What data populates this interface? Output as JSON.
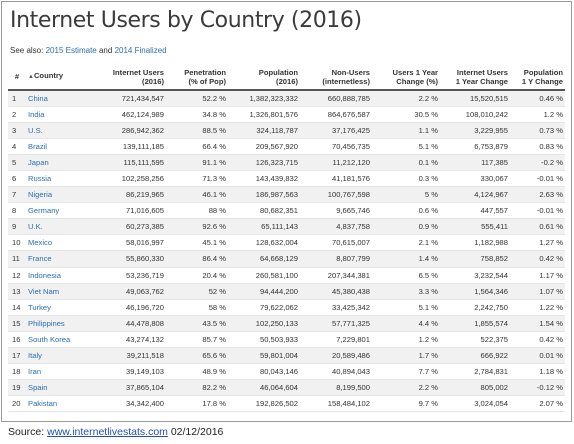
{
  "title": "Internet Users by Country (2016)",
  "see_also": {
    "prefix": "See also:",
    "link1": "2015 Estimate",
    "middle": "and",
    "link2": "2014 Finalized"
  },
  "table": {
    "headers": [
      "#",
      "Country",
      "Internet Users\n(2016)",
      "Penetration\n(% of Pop)",
      "Population\n(2016)",
      "Non-Users\n(internetless)",
      "Users 1 Year\nChange (%)",
      "Internet Users\n1 Year Change",
      "Population\n1 Y Change"
    ],
    "rows": [
      [
        "1",
        "China",
        "721,434,547",
        "52.2 %",
        "1,382,323,332",
        "660,888,785",
        "2.2 %",
        "15,520,515",
        "0.46 %"
      ],
      [
        "2",
        "India",
        "462,124,989",
        "34.8 %",
        "1,326,801,576",
        "864,676,587",
        "30.5 %",
        "108,010,242",
        "1.2 %"
      ],
      [
        "3",
        "U.S.",
        "286,942,362",
        "88.5 %",
        "324,118,787",
        "37,176,425",
        "1.1 %",
        "3,229,955",
        "0.73 %"
      ],
      [
        "4",
        "Brazil",
        "139,111,185",
        "66.4 %",
        "209,567,920",
        "70,456,735",
        "5.1 %",
        "6,753,879",
        "0.83 %"
      ],
      [
        "5",
        "Japan",
        "115,111,595",
        "91.1 %",
        "126,323,715",
        "11,212,120",
        "0.1 %",
        "117,385",
        "-0.2 %"
      ],
      [
        "6",
        "Russia",
        "102,258,256",
        "71.3 %",
        "143,439,832",
        "41,181,576",
        "0.3 %",
        "330,067",
        "-0.01 %"
      ],
      [
        "7",
        "Nigeria",
        "86,219,965",
        "46.1 %",
        "186,987,563",
        "100,767,598",
        "5 %",
        "4,124,967",
        "2.63 %"
      ],
      [
        "8",
        "Germany",
        "71,016,605",
        "88 %",
        "80,682,351",
        "9,665,746",
        "0.6 %",
        "447,557",
        "-0.01 %"
      ],
      [
        "9",
        "U.K.",
        "60,273,385",
        "92.6 %",
        "65,111,143",
        "4,837,758",
        "0.9 %",
        "555,411",
        "0.61 %"
      ],
      [
        "10",
        "Mexico",
        "58,016,997",
        "45.1 %",
        "128,632,004",
        "70,615,007",
        "2.1 %",
        "1,182,988",
        "1.27 %"
      ],
      [
        "11",
        "France",
        "55,860,330",
        "86.4 %",
        "64,668,129",
        "8,807,799",
        "1.4 %",
        "758,852",
        "0.42 %"
      ],
      [
        "12",
        "Indonesia",
        "53,236,719",
        "20.4 %",
        "260,581,100",
        "207,344,381",
        "6.5 %",
        "3,232,544",
        "1.17 %"
      ],
      [
        "13",
        "Viet Nam",
        "49,063,762",
        "52 %",
        "94,444,200",
        "45,380,438",
        "3.3 %",
        "1,564,346",
        "1.07 %"
      ],
      [
        "14",
        "Turkey",
        "46,196,720",
        "58 %",
        "79,622,062",
        "33,425,342",
        "5.1 %",
        "2,242,750",
        "1.22 %"
      ],
      [
        "15",
        "Philippines",
        "44,478,808",
        "43.5 %",
        "102,250,133",
        "57,771,325",
        "4.4 %",
        "1,855,574",
        "1.54 %"
      ],
      [
        "16",
        "South Korea",
        "43,274,132",
        "85.7 %",
        "50,503,933",
        "7,229,801",
        "1.2 %",
        "522,375",
        "0.42 %"
      ],
      [
        "17",
        "Italy",
        "39,211,518",
        "65.6 %",
        "59,801,004",
        "20,589,486",
        "1.7 %",
        "666,922",
        "0.01 %"
      ],
      [
        "18",
        "Iran",
        "39,149,103",
        "48.9 %",
        "80,043,146",
        "40,894,043",
        "7.7 %",
        "2,784,831",
        "1.18 %"
      ],
      [
        "19",
        "Spain",
        "37,865,104",
        "82.2 %",
        "46,064,604",
        "8,199,500",
        "2.2 %",
        "805,002",
        "-0.12 %"
      ],
      [
        "20",
        "Pakistan",
        "34,342,400",
        "17.8 %",
        "192,826,502",
        "158,484,102",
        "9.7 %",
        "3,024,054",
        "2.07 %"
      ]
    ]
  },
  "source": {
    "prefix": "Source:",
    "link": "www.internetlivestats.com",
    "date": "02/12/2016"
  },
  "colors": {
    "link": "#2a6fb5",
    "stripe": "#f1f1f1"
  }
}
